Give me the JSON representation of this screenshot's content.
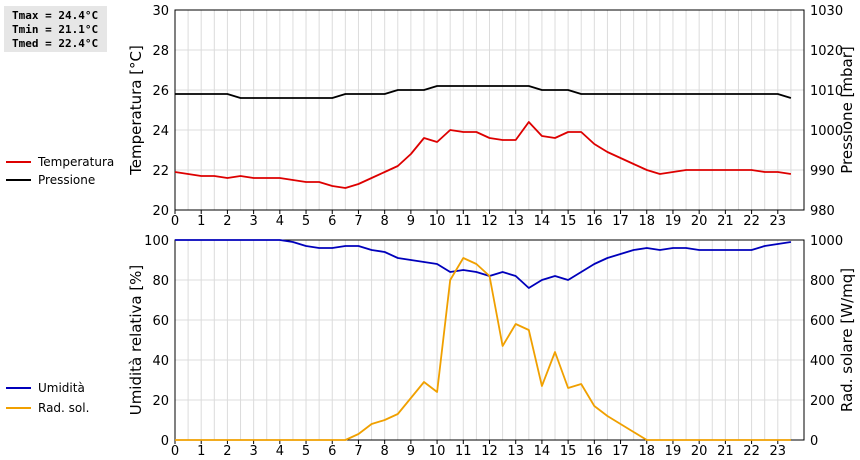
{
  "stats": {
    "tmax": "Tmax = 24.4°C",
    "tmin": "Tmin = 21.1°C",
    "tmed": "Tmed = 22.4°C"
  },
  "colors": {
    "temperature": "#dd0000",
    "pressure": "#000000",
    "humidity": "#0000bb",
    "radiation": "#f0a000",
    "grid": "#dcdcdc"
  },
  "chart_data": [
    {
      "type": "line",
      "x_ticks": [
        "0",
        "1",
        "2",
        "3",
        "4",
        "5",
        "6",
        "7",
        "8",
        "9",
        "10",
        "11",
        "12",
        "13",
        "14",
        "15",
        "16",
        "17",
        "18",
        "19",
        "20",
        "21",
        "22",
        "23"
      ],
      "xlim": [
        0,
        24
      ],
      "ylabel": "Temperatura [°C]",
      "y2label": "Pressione [mbar]",
      "ylim": [
        20,
        30
      ],
      "y_ticks": [
        "20",
        "22",
        "24",
        "26",
        "28",
        "30"
      ],
      "y2lim": [
        980,
        1030
      ],
      "y2_ticks": [
        "980",
        "990",
        "1000",
        "1010",
        "1020",
        "1030"
      ],
      "grid": true,
      "legend_placement": "left",
      "series": [
        {
          "name": "Temperatura",
          "axis": "left",
          "x": [
            0,
            0.5,
            1,
            1.5,
            2,
            2.5,
            3,
            3.5,
            4,
            4.5,
            5,
            5.5,
            6,
            6.5,
            7,
            7.5,
            8,
            8.5,
            9,
            9.5,
            10,
            10.5,
            11,
            11.5,
            12,
            12.5,
            13,
            13.5,
            14,
            14.5,
            15,
            15.5,
            16,
            16.5,
            17,
            17.5,
            18,
            18.5,
            19,
            19.5,
            20,
            20.5,
            21,
            21.5,
            22,
            22.5,
            23,
            23.5
          ],
          "values": [
            21.9,
            21.8,
            21.7,
            21.7,
            21.6,
            21.7,
            21.6,
            21.6,
            21.6,
            21.5,
            21.4,
            21.4,
            21.2,
            21.1,
            21.3,
            21.6,
            21.9,
            22.2,
            22.8,
            23.6,
            23.4,
            24.0,
            23.9,
            23.9,
            23.6,
            23.5,
            23.5,
            24.4,
            23.7,
            23.6,
            23.9,
            23.9,
            23.3,
            22.9,
            22.6,
            22.3,
            22.0,
            21.8,
            21.9,
            22.0,
            22.0,
            22.0,
            22.0,
            22.0,
            22.0,
            21.9,
            21.9,
            21.8
          ]
        },
        {
          "name": "Pressione",
          "axis": "right",
          "x": [
            0,
            0.5,
            1,
            1.5,
            2,
            2.5,
            3,
            3.5,
            4,
            4.5,
            5,
            5.5,
            6,
            6.5,
            7,
            7.5,
            8,
            8.5,
            9,
            9.5,
            10,
            10.5,
            11,
            11.5,
            12,
            12.5,
            13,
            13.5,
            14,
            14.5,
            15,
            15.5,
            16,
            16.5,
            17,
            17.5,
            18,
            18.5,
            19,
            19.5,
            20,
            20.5,
            21,
            21.5,
            22,
            22.5,
            23,
            23.5
          ],
          "values": [
            1009,
            1009,
            1009,
            1009,
            1009,
            1008,
            1008,
            1008,
            1008,
            1008,
            1008,
            1008,
            1008,
            1009,
            1009,
            1009,
            1009,
            1010,
            1010,
            1010,
            1011,
            1011,
            1011,
            1011,
            1011,
            1011,
            1011,
            1011,
            1010,
            1010,
            1010,
            1009,
            1009,
            1009,
            1009,
            1009,
            1009,
            1009,
            1009,
            1009,
            1009,
            1009,
            1009,
            1009,
            1009,
            1009,
            1009,
            1008
          ]
        }
      ]
    },
    {
      "type": "line",
      "x_ticks": [
        "0",
        "1",
        "2",
        "3",
        "4",
        "5",
        "6",
        "7",
        "8",
        "9",
        "10",
        "11",
        "12",
        "13",
        "14",
        "15",
        "16",
        "17",
        "18",
        "19",
        "20",
        "21",
        "22",
        "23"
      ],
      "xlim": [
        0,
        24
      ],
      "ylabel": "Umidità relativa [%]",
      "y2label": "Rad. solare [W/mq]",
      "ylim": [
        0,
        100
      ],
      "y_ticks": [
        "0",
        "20",
        "40",
        "60",
        "80",
        "100"
      ],
      "y2lim": [
        0,
        1000
      ],
      "y2_ticks": [
        "0",
        "200",
        "400",
        "600",
        "800",
        "1000"
      ],
      "grid": true,
      "legend_placement": "left",
      "series": [
        {
          "name": "Umidità",
          "axis": "left",
          "x": [
            0,
            0.5,
            1,
            1.5,
            2,
            2.5,
            3,
            3.5,
            4,
            4.5,
            5,
            5.5,
            6,
            6.5,
            7,
            7.5,
            8,
            8.5,
            9,
            9.5,
            10,
            10.5,
            11,
            11.5,
            12,
            12.5,
            13,
            13.5,
            14,
            14.5,
            15,
            15.5,
            16,
            16.5,
            17,
            17.5,
            18,
            18.5,
            19,
            19.5,
            20,
            20.5,
            21,
            21.5,
            22,
            22.5,
            23,
            23.5
          ],
          "values": [
            100,
            100,
            100,
            100,
            100,
            100,
            100,
            100,
            100,
            99,
            97,
            96,
            96,
            97,
            97,
            95,
            94,
            91,
            90,
            89,
            88,
            84,
            85,
            84,
            82,
            84,
            82,
            76,
            80,
            82,
            80,
            84,
            88,
            91,
            93,
            95,
            96,
            95,
            96,
            96,
            95,
            95,
            95,
            95,
            95,
            97,
            98,
            99
          ]
        },
        {
          "name": "Rad. sol.",
          "axis": "right",
          "x": [
            0,
            0.5,
            1,
            1.5,
            2,
            2.5,
            3,
            3.5,
            4,
            4.5,
            5,
            5.5,
            6,
            6.5,
            7,
            7.5,
            8,
            8.5,
            9,
            9.5,
            10,
            10.5,
            11,
            11.5,
            12,
            12.5,
            13,
            13.5,
            14,
            14.5,
            15,
            15.5,
            16,
            16.5,
            17,
            17.5,
            18,
            18.5,
            19,
            19.5,
            20,
            20.5,
            21,
            21.5,
            22,
            22.5,
            23,
            23.5
          ],
          "values": [
            0,
            0,
            0,
            0,
            0,
            0,
            0,
            0,
            0,
            0,
            0,
            0,
            0,
            0,
            30,
            80,
            100,
            130,
            210,
            290,
            240,
            800,
            910,
            880,
            820,
            470,
            580,
            550,
            270,
            440,
            260,
            280,
            170,
            120,
            80,
            40,
            0,
            0,
            0,
            0,
            0,
            0,
            0,
            0,
            0,
            0,
            0,
            0
          ]
        }
      ]
    }
  ]
}
